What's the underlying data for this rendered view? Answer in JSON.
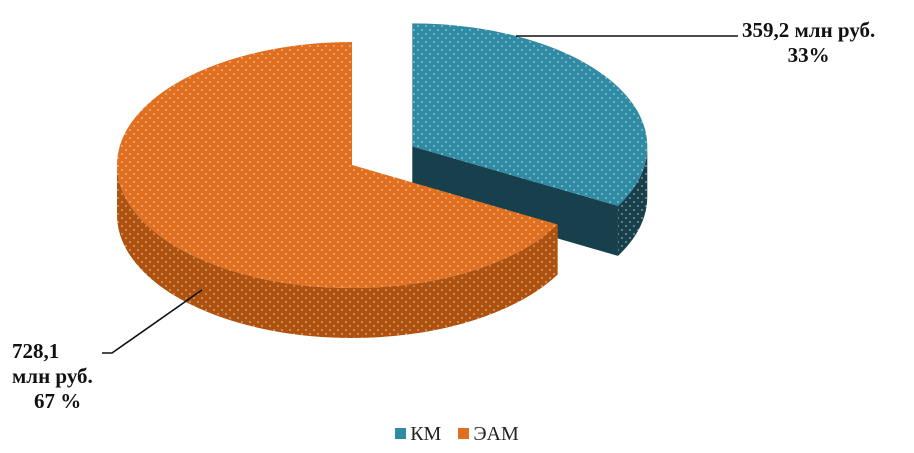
{
  "chart_data": {
    "type": "pie",
    "style": "3d-exploded",
    "slices": [
      {
        "name": "КМ",
        "value": 359.2,
        "percent": 33,
        "value_label": "359,2 млн руб.",
        "percent_label": "33%",
        "color": "#2f8aa3",
        "side_color": "#17404c"
      },
      {
        "name": "ЭАМ",
        "value": 728.1,
        "percent": 67,
        "value_label_line1": "728,1",
        "value_label_line2": "млн руб.",
        "percent_label": "67 %",
        "color": "#e07020",
        "side_color": "#b0520f"
      }
    ],
    "legend": {
      "position": "bottom",
      "items": [
        "КМ",
        "ЭАМ"
      ]
    }
  }
}
